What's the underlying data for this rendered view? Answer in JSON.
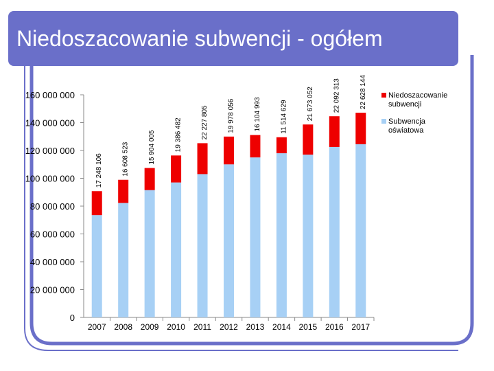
{
  "slide": {
    "title": "Niedoszacowanie subwencji - ogółem"
  },
  "colors": {
    "title_bg": "#6a6fc9",
    "frame": "#6a6fc9",
    "subwencja": "#a7d0f5",
    "niedoszacowanie": "#ee0000"
  },
  "chart_data": {
    "type": "bar",
    "stacked": true,
    "title": "",
    "xlabel": "",
    "ylabel": "",
    "ylim": [
      0,
      160000000
    ],
    "y_ticks": [
      0,
      20000000,
      40000000,
      60000000,
      80000000,
      100000000,
      120000000,
      140000000,
      160000000
    ],
    "y_tick_labels": [
      "0",
      "20 000 000",
      "40 000 000",
      "60 000 000",
      "80 000 000",
      "100 000 000",
      "120 000 000",
      "140 000 000",
      "160 000 000"
    ],
    "categories": [
      "2007",
      "2008",
      "2009",
      "2010",
      "2011",
      "2012",
      "2013",
      "2014",
      "2015",
      "2016",
      "2017"
    ],
    "series": [
      {
        "name": "Subwencja oświatowa",
        "values": [
          73500000,
          82300000,
          91500000,
          97000000,
          103000000,
          110000000,
          115000000,
          118000000,
          117000000,
          122500000,
          124500000
        ]
      },
      {
        "name": "Niedoszacowanie subwencji",
        "values": [
          17248106,
          16608523,
          15904005,
          19386482,
          22227805,
          19978056,
          16104993,
          11514629,
          21673052,
          22092313,
          22628144
        ]
      }
    ],
    "data_labels": [
      "17 248 106",
      "16 608 523",
      "15 904 005",
      "19 386 482",
      "22 227 805",
      "19 978 056",
      "16 104 993",
      "11 514 629",
      "21 673 052",
      "22 092 313",
      "22 628 144"
    ],
    "legend": {
      "position": "right",
      "entries": [
        {
          "line1": "Niedoszacowanie",
          "line2": "subwencji"
        },
        {
          "line1": "Subwencja",
          "line2": "oświatowa"
        }
      ]
    },
    "grid": false
  }
}
